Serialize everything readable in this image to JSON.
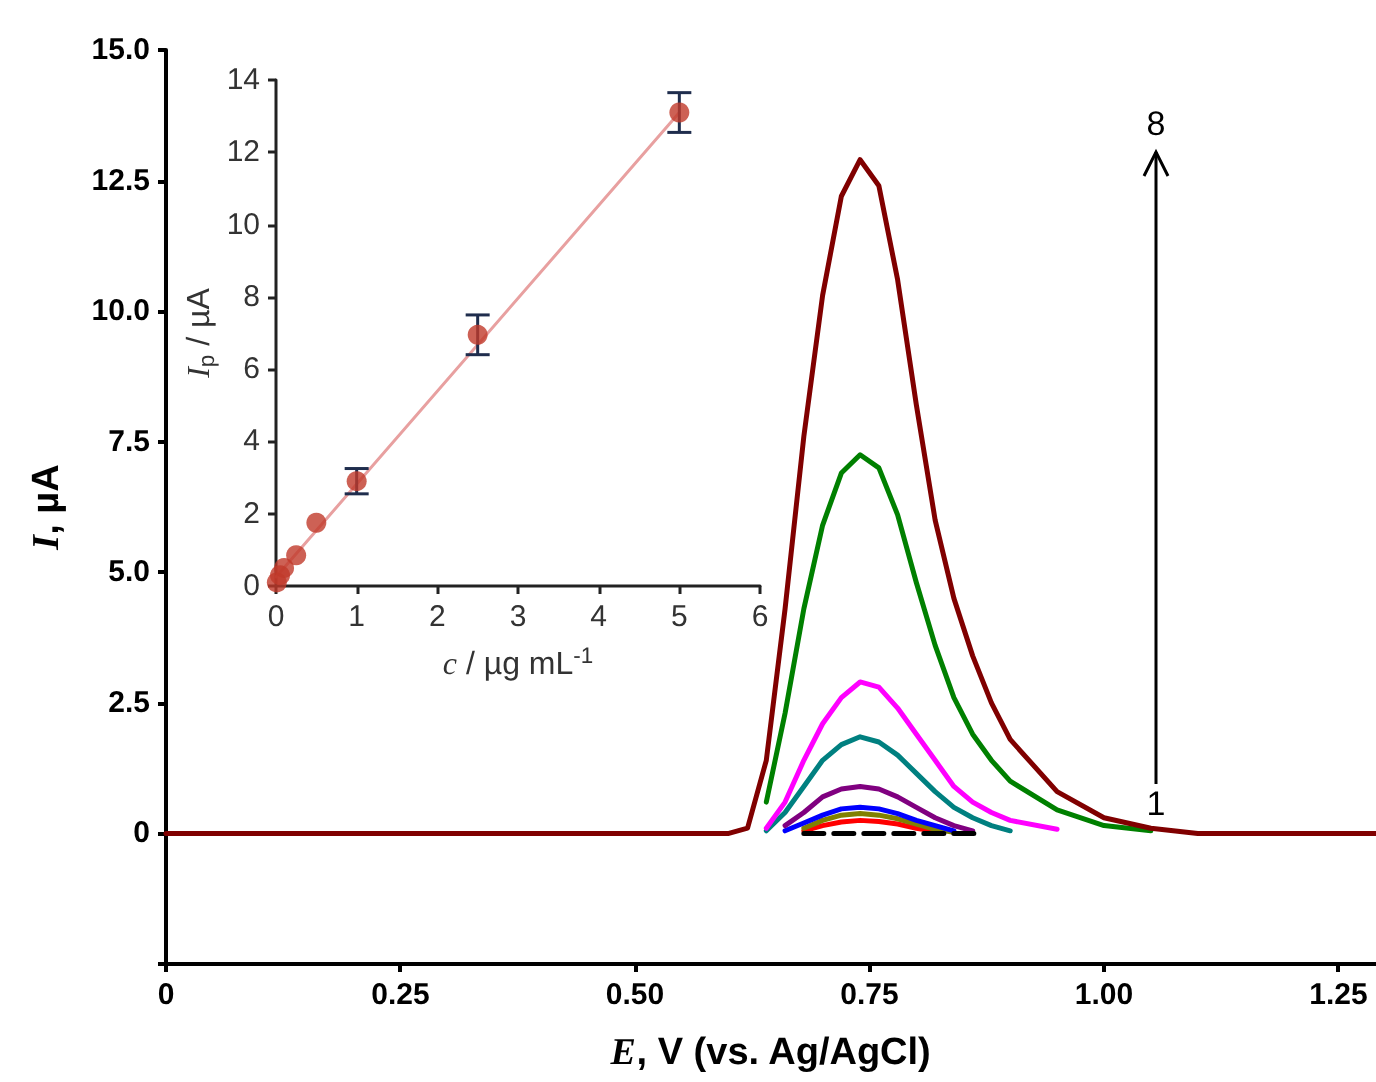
{
  "chart_data": [
    {
      "type": "line",
      "xlabel": "E, V (vs. Ag/AgCl)",
      "ylabel": "I, µA",
      "x": [
        0,
        0.6,
        0.62,
        0.64,
        0.66,
        0.68,
        0.7,
        0.72,
        0.74,
        0.76,
        0.78,
        0.8,
        0.82,
        0.84,
        0.86,
        0.88,
        0.9,
        0.95,
        1.0,
        1.05,
        1.1,
        1.29
      ],
      "series": [
        {
          "color": "#ff0000",
          "values": [
            null,
            null,
            null,
            null,
            null,
            0.05,
            0.15,
            0.22,
            0.25,
            0.23,
            0.18,
            0.1,
            0.04,
            null,
            null,
            null,
            null,
            null,
            null,
            null,
            null,
            null
          ]
        },
        {
          "color": "#808000",
          "values": [
            null,
            null,
            null,
            null,
            null,
            0.1,
            0.25,
            0.35,
            0.38,
            0.35,
            0.28,
            0.18,
            0.08,
            0.02,
            null,
            null,
            null,
            null,
            null,
            null,
            null,
            null
          ]
        },
        {
          "color": "#0000ff",
          "values": [
            null,
            null,
            null,
            null,
            0.05,
            0.2,
            0.35,
            0.47,
            0.5,
            0.47,
            0.38,
            0.25,
            0.15,
            0.05,
            null,
            null,
            null,
            null,
            null,
            null,
            null,
            null
          ]
        },
        {
          "color": "#800080",
          "values": [
            null,
            null,
            null,
            null,
            0.15,
            0.4,
            0.7,
            0.85,
            0.9,
            0.85,
            0.7,
            0.5,
            0.3,
            0.15,
            0.05,
            null,
            null,
            null,
            null,
            null,
            null,
            null
          ]
        },
        {
          "color": "#008080",
          "values": [
            null,
            null,
            null,
            0.05,
            0.4,
            0.9,
            1.4,
            1.7,
            1.85,
            1.75,
            1.5,
            1.15,
            0.8,
            0.5,
            0.3,
            0.15,
            0.05,
            null,
            null,
            null,
            null,
            null
          ]
        },
        {
          "color": "#ff00ff",
          "values": [
            null,
            null,
            null,
            0.1,
            0.6,
            1.4,
            2.1,
            2.6,
            2.9,
            2.8,
            2.4,
            1.9,
            1.4,
            0.9,
            0.6,
            0.4,
            0.25,
            0.08,
            null,
            null,
            null,
            null
          ]
        },
        {
          "color": "#008000",
          "values": [
            null,
            null,
            null,
            0.6,
            2.3,
            4.3,
            5.9,
            6.9,
            7.25,
            7.0,
            6.1,
            4.8,
            3.6,
            2.6,
            1.9,
            1.4,
            1.0,
            0.45,
            0.15,
            0.05,
            null,
            null
          ]
        },
        {
          "color": "#800000",
          "values": [
            0,
            0,
            0.1,
            1.4,
            4.3,
            7.6,
            10.3,
            12.2,
            12.9,
            12.4,
            10.6,
            8.2,
            6.0,
            4.5,
            3.4,
            2.5,
            1.8,
            0.8,
            0.3,
            0.1,
            0,
            0
          ]
        },
        {
          "color": "#000000",
          "line_style": "dashed",
          "x": [
            0.68,
            0.87
          ],
          "values": [
            0,
            0
          ]
        }
      ],
      "xlim": [
        0,
        1.29
      ],
      "xticks": [
        0,
        0.25,
        {
          "value": 0.5,
          "label": "0.50"
        },
        0.75,
        {
          "value": 1,
          "label": "1.00"
        },
        1.25
      ],
      "ylim": [
        -2.5,
        15
      ],
      "yticks": [
        {
          "value": -2.5,
          "label": null
        },
        0,
        2.5,
        {
          "value": 5,
          "label": "5.0"
        },
        7.5,
        {
          "value": 10,
          "label": "10.0"
        },
        12.5,
        {
          "value": 15,
          "label": "15.0"
        }
      ],
      "grid": false,
      "marker": "none",
      "line_style": "solid",
      "annotations": [
        "8",
        "1"
      ]
    },
    {
      "type": "scatter",
      "xlabel": "c / µg mL$^{-1}$",
      "ylabel": "I$_{p}$ / µA",
      "x": [
        0.01,
        0.05,
        0.1,
        0.25,
        0.5,
        1,
        2.5,
        5
      ],
      "series": [
        {
          "color": "#c0392b",
          "marker": "circle",
          "values": [
            0.1,
            0.3,
            0.5,
            0.85,
            1.75,
            2.9,
            6.95,
            13.1
          ],
          "errors": [
            null,
            null,
            null,
            null,
            null,
            0.35,
            0.55,
            0.55
          ]
        },
        {
          "type": "line",
          "color": "#e8a0a0",
          "x": [
            0,
            5
          ],
          "values": [
            0.25,
            13.1
          ]
        }
      ],
      "xlim": [
        0,
        6
      ],
      "xticks": [
        0,
        1,
        2,
        3,
        4,
        5,
        6
      ],
      "ylim": [
        0,
        14
      ],
      "yticks": [
        0,
        2,
        4,
        6,
        8,
        10,
        12,
        14
      ],
      "grid": false
    }
  ]
}
